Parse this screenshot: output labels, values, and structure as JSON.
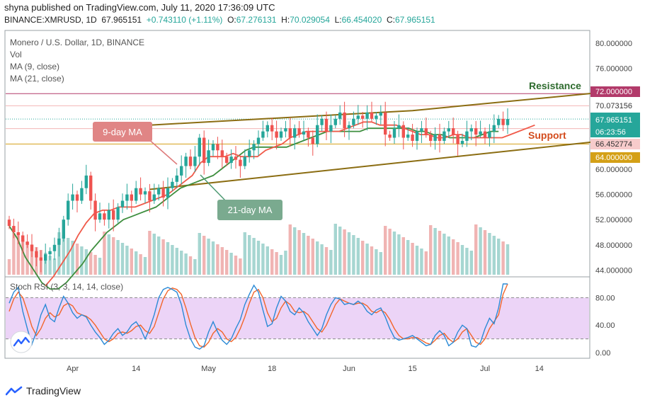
{
  "header": {
    "published": "shyna published on TradingView.com, July 11, 2020 17:36:09 UTC",
    "symbol": "BINANCE:XMRUSD, 1D",
    "price": "67.965151",
    "change": "+0.743110 (+1.11%)",
    "o_label": "O:",
    "o": "67.276131",
    "h_label": "H:",
    "h": "70.029054",
    "l_label": "L:",
    "l": "66.454020",
    "c_label": "C:",
    "c": "67.965151"
  },
  "legend": {
    "title": "Monero / U.S. Dollar, 1D, BINANCE",
    "vol": "Vol",
    "ma9": "MA (9, close)",
    "ma21": "MA (21, close)",
    "rsi": "Stoch RSI (3, 3, 14, 14, close)"
  },
  "annotations": {
    "ma9_tag": "9-day MA",
    "ma21_tag": "21-day MA",
    "resistance": "Resistance",
    "support": "Support"
  },
  "price_tags": {
    "resistance_level": "72.000000",
    "high_line": "70.073156",
    "last": "67.965151",
    "countdown": "06:23:56",
    "low_line": "66.452774",
    "support_level": "64.000000"
  },
  "colors": {
    "up": "#26a69a",
    "down": "#ef5350",
    "ma9": "#f05a4a",
    "ma21": "#3e8e3e",
    "channel": "#8b6d12",
    "resistance": "#2e6b2e",
    "support": "#d34c1d",
    "rsi_k": "#2b8ad6",
    "rsi_d": "#f2652a",
    "rsi_band": "#e7c9f5"
  },
  "chart_data": [
    {
      "type": "candlestick",
      "x_ticks": [
        "Apr",
        "14",
        "May",
        "18",
        "Jun",
        "15",
        "Jul",
        "14"
      ],
      "y_ticks": [
        "80.000000",
        "76.000000",
        "72.000000",
        "68.000000",
        "64.000000",
        "60.000000",
        "56.000000",
        "52.000000",
        "48.000000",
        "44.000000"
      ],
      "ylim": [
        43,
        81
      ],
      "x_ticks_day": [
        14,
        28,
        44,
        58,
        75,
        89,
        105,
        117
      ],
      "candles_close": [
        51,
        50,
        49.5,
        48.5,
        48,
        47,
        46,
        45.5,
        46.5,
        47,
        48,
        49,
        52,
        55,
        56,
        55,
        57,
        59,
        55,
        52,
        53,
        52,
        53.5,
        52,
        54,
        55,
        56,
        55,
        57,
        56,
        56.5,
        55,
        56,
        57,
        55.5,
        57,
        58,
        59,
        60.5,
        62,
        60.5,
        62,
        65,
        61,
        63,
        64,
        63,
        62,
        61,
        62,
        61.5,
        60.5,
        62,
        63,
        64,
        65,
        66,
        67,
        66,
        65,
        66,
        66.5,
        65,
        66.5,
        65.5,
        66,
        65,
        64,
        67,
        68,
        66,
        67,
        68,
        69,
        66.5,
        67,
        68,
        68.5,
        68,
        69,
        68,
        68.5,
        69,
        65.5,
        65,
        66.5,
        67,
        65,
        65.5,
        64.5,
        66,
        66.5,
        65.5,
        64.5,
        65.5,
        64.5,
        66,
        66.5,
        65.5,
        64,
        64.5,
        66,
        66.5,
        65.5,
        66,
        65,
        66,
        67,
        68,
        67,
        67.965
      ],
      "ma9": {
        "from_day": 8,
        "values": [
          41.5,
          43,
          45,
          47,
          49.5,
          51.5,
          53,
          53.5,
          53.5,
          54,
          54,
          54,
          54.5,
          55,
          55.5,
          56,
          57,
          58,
          59,
          61,
          62,
          62,
          62,
          62.5,
          62,
          62,
          62,
          63,
          63.5,
          64,
          65,
          65.5,
          66,
          66,
          66,
          66,
          66,
          66.5,
          67,
          67.5,
          67.5,
          67,
          67,
          67,
          66.5,
          66,
          65.5,
          65.5,
          65,
          65,
          65.5,
          65.5,
          65,
          65,
          65,
          65,
          65,
          65.5,
          66,
          66.5,
          67
        ]
      },
      "ma21": {
        "from_day": 0,
        "values": [
          51,
          49,
          46,
          44,
          42,
          41,
          41,
          42,
          43.5,
          45,
          47,
          48.5,
          50,
          51,
          52,
          52.5,
          53,
          53.5,
          54,
          55,
          56,
          57,
          57.5,
          58,
          58.5,
          59,
          60,
          61,
          62,
          63,
          63.5,
          63.5,
          63.5,
          63.5,
          63.5,
          64,
          64.5,
          65,
          65.5,
          66,
          66,
          66,
          66,
          66,
          66.5,
          66.5,
          66.5,
          66.5,
          66.5,
          66.5,
          66,
          66,
          65.5,
          65.5,
          65,
          65,
          65,
          65,
          65.5,
          66,
          66
        ]
      },
      "channel": {
        "upper": [
          [
            31,
            67
          ],
          [
            89,
            69.3
          ],
          [
            131,
            72.2
          ]
        ],
        "lower": [
          [
            31,
            56.8
          ],
          [
            131,
            64.5
          ]
        ]
      },
      "levels": {
        "resistance": 72,
        "support": 64
      }
    },
    {
      "type": "line",
      "title": "Stoch RSI (3, 3, 14, 14, close)",
      "y_ticks": [
        "80.00",
        "40.00",
        "0.00"
      ],
      "ylim": [
        -8,
        110
      ],
      "band": [
        20,
        80
      ],
      "series": [
        {
          "name": "K",
          "values": [
            72,
            88,
            95,
            60,
            35,
            12,
            30,
            55,
            70,
            50,
            45,
            65,
            82,
            72,
            58,
            50,
            55,
            52,
            40,
            30,
            22,
            12,
            18,
            28,
            35,
            25,
            30,
            40,
            45,
            35,
            20,
            35,
            55,
            80,
            92,
            95,
            92,
            88,
            70,
            40,
            20,
            8,
            5,
            10,
            30,
            45,
            30,
            18,
            12,
            20,
            35,
            48,
            70,
            85,
            98,
            88,
            62,
            38,
            42,
            65,
            82,
            75,
            60,
            55,
            65,
            58,
            45,
            35,
            25,
            35,
            55,
            70,
            80,
            78,
            70,
            72,
            70,
            75,
            70,
            60,
            55,
            62,
            65,
            52,
            35,
            22,
            18,
            20,
            22,
            25,
            20,
            15,
            10,
            12,
            25,
            32,
            25,
            10,
            15,
            30,
            40,
            35,
            10,
            8,
            15,
            35,
            50,
            42,
            65,
            100,
            100
          ]
        },
        {
          "name": "D",
          "values": [
            60,
            78,
            88,
            80,
            60,
            38,
            25,
            35,
            50,
            58,
            52,
            55,
            68,
            72,
            68,
            58,
            55,
            53,
            48,
            40,
            30,
            20,
            16,
            20,
            28,
            30,
            28,
            32,
            38,
            40,
            32,
            28,
            38,
            58,
            78,
            90,
            94,
            92,
            85,
            65,
            42,
            22,
            10,
            8,
            15,
            28,
            35,
            30,
            20,
            16,
            22,
            35,
            52,
            72,
            88,
            92,
            80,
            58,
            45,
            50,
            65,
            75,
            70,
            60,
            58,
            60,
            55,
            45,
            35,
            30,
            40,
            55,
            70,
            78,
            75,
            72,
            70,
            72,
            72,
            68,
            60,
            58,
            62,
            58,
            48,
            35,
            25,
            20,
            20,
            22,
            22,
            18,
            14,
            12,
            18,
            25,
            28,
            20,
            15,
            20,
            30,
            35,
            25,
            15,
            12,
            20,
            35,
            45,
            55,
            85,
            100
          ]
        }
      ]
    }
  ]
}
